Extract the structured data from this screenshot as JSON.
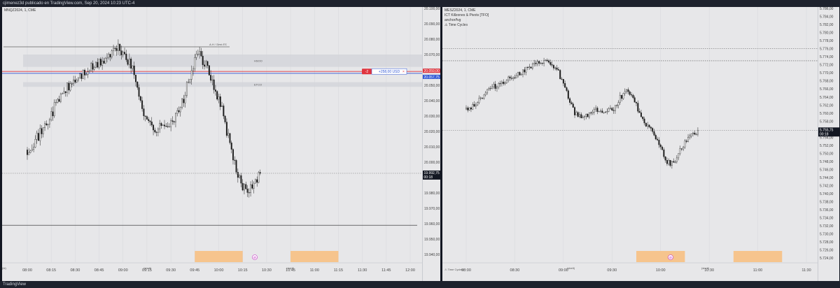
{
  "header": {
    "title": "cjimenez3d publicado en TradingView.com, Sep 20, 2024 10:23 UTC-4"
  },
  "footer": {
    "brand": "TradingView"
  },
  "left_panel": {
    "symbol": "MNQZ2024, 1, CME",
    "zone_upper_label": "HSOO",
    "zone_lower_label": "ETCO",
    "annotation": "A.H / Sent ES",
    "position_badge": "-2",
    "position_pnl": "+258,00 USD",
    "position_close": "×",
    "bottom_tag_1": "(sbelt)",
    "bottom_tag_2": "(sbelt)",
    "axis_left_label": "(bl)",
    "bottom_icon": "⊘"
  },
  "right_panel": {
    "symbol": "MESZ2024, 1, CME",
    "legend_lines": [
      "ICT Killzones & Pivots [TFO]",
      "anchor/fvg",
      "⚠ Time Cycles"
    ],
    "bottom_legend": "⚠ Time Cycles+",
    "bottom_tag_1": "(sbelt)",
    "bottom_tag_2": "(sbelt)",
    "bottom_icon": "⊘"
  },
  "left_price_labels": {
    "upper_red": "20.059,00",
    "upper_blue": "20.057,75",
    "current": "19.992,75",
    "countdown": "00:18"
  },
  "right_price_labels": {
    "current": "5.755,75",
    "countdown": "00:18"
  },
  "colors": {
    "background": "#131722",
    "chart_bg": "#e7e7e9",
    "candle": "#1c1c1c",
    "session_highlight": "#f6c48d",
    "zone": "#d1d3d8",
    "red_line": "#e0343e",
    "blue_line": "#2f55d4",
    "price_tag": "#131722"
  },
  "chart_data": [
    {
      "type": "candlestick",
      "symbol": "MNQZ2024, 1, CME",
      "ylim": [
        19935,
        20100
      ],
      "yticks": [
        "20.100,00",
        "20.090,00",
        "20.080,00",
        "20.070,00",
        "20.060,00",
        "20.050,00",
        "20.040,00",
        "20.030,00",
        "20.020,00",
        "20.010,00",
        "20.000,00",
        "19.990,00",
        "19.980,00",
        "19.970,00",
        "19.960,00",
        "19.950,00",
        "19.940,00"
      ],
      "xticks": [
        "08:00",
        "08:15",
        "08:30",
        "08:45",
        "09:00",
        "09:15",
        "09:30",
        "09:45",
        "10:00",
        "10:15",
        "10:30",
        "10:45",
        "11:00",
        "11:15",
        "11:30",
        "11:45",
        "12:00"
      ],
      "close_path": [
        20008,
        20013,
        20018,
        20024,
        20032,
        20040,
        20046,
        20050,
        20054,
        20057,
        20060,
        20062,
        20065,
        20068,
        20072,
        20074,
        20069,
        20062,
        20048,
        20033,
        20024,
        20021,
        20023,
        20026,
        20028,
        20035,
        20048,
        20062,
        20071,
        20064,
        20053,
        20044,
        20030,
        20012,
        19995,
        19985,
        19982,
        19988,
        19992.75
      ],
      "zones": [
        {
          "label": "HSOO",
          "low": 20062,
          "high": 20070
        },
        {
          "label": "ETCO",
          "low": 20049,
          "high": 20052
        }
      ],
      "levels": [
        {
          "label": "A.H / Sent ES",
          "price": 20075
        },
        {
          "price": 20059,
          "color": "red"
        },
        {
          "price": 20057.75,
          "color": "blue"
        },
        {
          "price": 19959
        }
      ],
      "current_price": 19992.75,
      "sessions": [
        [
          "09:45",
          "10:15"
        ],
        [
          "10:45",
          "11:15"
        ]
      ]
    },
    {
      "type": "candlestick",
      "symbol": "MESZ2024, 1, CME",
      "ylim": [
        5723,
        5786
      ],
      "yticks": [
        "5.786,00",
        "5.784,00",
        "5.782,00",
        "5.780,00",
        "5.778,00",
        "5.776,00",
        "5.774,00",
        "5.772,00",
        "5.770,00",
        "5.768,00",
        "5.766,00",
        "5.764,00",
        "5.762,00",
        "5.760,00",
        "5.758,00",
        "5.756,00",
        "5.754,00",
        "5.752,00",
        "5.750,00",
        "5.748,00",
        "5.746,00",
        "5.744,00",
        "5.742,00",
        "5.740,00",
        "5.738,00",
        "5.736,00",
        "5.734,00",
        "5.732,00",
        "5.730,00",
        "5.728,00",
        "5.726,00",
        "5.724,00"
      ],
      "xticks": [
        "08:00",
        "08:30",
        "09:00",
        "09:30",
        "10:00",
        "10:30",
        "11:00",
        "11:30"
      ],
      "close_path": [
        5761,
        5762,
        5764,
        5766,
        5767,
        5768,
        5769,
        5770,
        5771,
        5772,
        5773,
        5772,
        5770,
        5765,
        5760,
        5759,
        5760,
        5761,
        5760,
        5761,
        5764,
        5766,
        5762,
        5758,
        5756,
        5752,
        5748,
        5747,
        5752,
        5754,
        5755.75
      ],
      "levels": [
        {
          "price": 5776
        },
        {
          "price": 5773
        }
      ],
      "current_price": 5755.75,
      "sessions": [
        [
          "09:45",
          "10:15"
        ],
        [
          "10:45",
          "11:15"
        ]
      ]
    }
  ]
}
